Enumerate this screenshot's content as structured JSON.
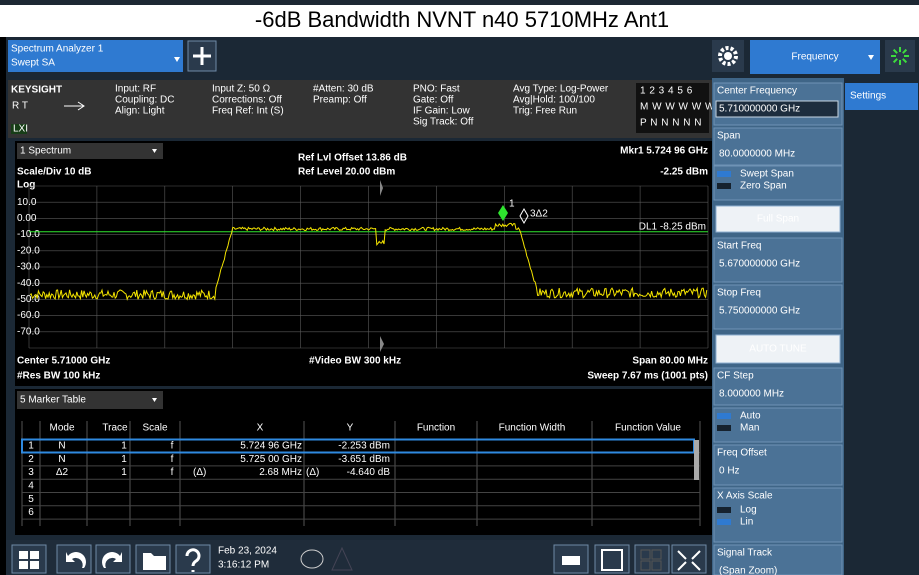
{
  "title": "-6dB Bandwidth NVNT n40 5710MHz Ant1",
  "tabs": {
    "analyzer": [
      "Spectrum Analyzer 1",
      "Swept SA"
    ],
    "menu": "Frequency",
    "settings": "Settings"
  },
  "info": {
    "brand": "KEYSIGHT",
    "mode": "R  T",
    "lxi": "LXI",
    "columns": [
      [
        "Input: RF",
        "Coupling: DC",
        "Align: Light"
      ],
      [
        "Input Z: 50 Ω",
        "Corrections: Off",
        "Freq Ref: Int (S)"
      ],
      [
        "#Atten: 30 dB",
        "Preamp: Off"
      ],
      [
        "PNO: Fast",
        "Gate: Off",
        "IF Gain: Low",
        "Sig Track: Off"
      ],
      [
        "Avg Type: Log-Power",
        "Avg|Hold: 100/100",
        "Trig: Free Run"
      ]
    ],
    "traces": [
      "1 2 3 4 5 6",
      "M W W W W W",
      "P N N N N N"
    ]
  },
  "graph": {
    "window": "1 Spectrum",
    "ref_offset": "Ref Lvl Offset 13.86 dB",
    "ref_level": "Ref Level 20.00 dBm",
    "marker_freq": "Mkr1  5.724 96 GHz",
    "marker_level": "-2.25 dBm",
    "scale": "Scale/Div 10 dB",
    "log": "Log",
    "y_labels": [
      "10.0",
      "0.00",
      "-10.0",
      "-20.0",
      "-30.0",
      "-40.0",
      "-50.0",
      "-60.0",
      "-70.0"
    ],
    "display_line": "DL1 -8.25 dBm",
    "markers": [
      "1",
      "3Δ2"
    ],
    "center": "Center 5.71000 GHz",
    "video_bw": "#Video BW 300 kHz",
    "span": "Span 80.00 MHz",
    "res_bw": "#Res BW 100 kHz",
    "sweep": "Sweep 7.67 ms (1001 pts)"
  },
  "marker_table": {
    "title": "5 Marker Table",
    "columns": [
      "Mode",
      "Trace",
      "Scale",
      "X",
      "Y",
      "Function",
      "Function Width",
      "Function Value"
    ],
    "rows": [
      {
        "n": "1",
        "mode": "N",
        "trace": "1",
        "scale": "f",
        "x": "5.724 96 GHz",
        "y": "-2.253 dBm"
      },
      {
        "n": "2",
        "mode": "N",
        "trace": "1",
        "scale": "f",
        "x": "5.725 00 GHz",
        "y": "-3.651 dBm"
      },
      {
        "n": "3",
        "mode": "Δ2",
        "trace": "1",
        "scale": "f",
        "x_prefix": "(Δ)",
        "x": "2.68 MHz",
        "y_prefix": "(Δ)",
        "y": "-4.640 dB"
      },
      {
        "n": "4"
      },
      {
        "n": "5"
      },
      {
        "n": "6"
      }
    ]
  },
  "softkeys": [
    {
      "label": "Center Frequency",
      "value": "5.710000000 GHz"
    },
    {
      "label": "Span",
      "value": "80.0000000 MHz"
    },
    {
      "options": [
        "Swept Span",
        "Zero Span"
      ],
      "selected": 0
    },
    {
      "button": "Full Span"
    },
    {
      "label": "Start Freq",
      "value": "5.670000000 GHz"
    },
    {
      "label": "Stop Freq",
      "value": "5.750000000 GHz"
    },
    {
      "button": "AUTO TUNE"
    },
    {
      "label": "CF Step",
      "value": "8.000000 MHz"
    },
    {
      "options": [
        "Auto",
        "Man"
      ],
      "selected": 0
    },
    {
      "label": "Freq Offset",
      "value": "0 Hz"
    },
    {
      "label": "X Axis Scale",
      "options": [
        "Log",
        "Lin"
      ],
      "selected": 1
    },
    {
      "label": "Signal Track",
      "value": "(Span Zoom)"
    }
  ],
  "taskbar": {
    "date": "Feb 23, 2024",
    "time": "3:16:12 PM"
  }
}
